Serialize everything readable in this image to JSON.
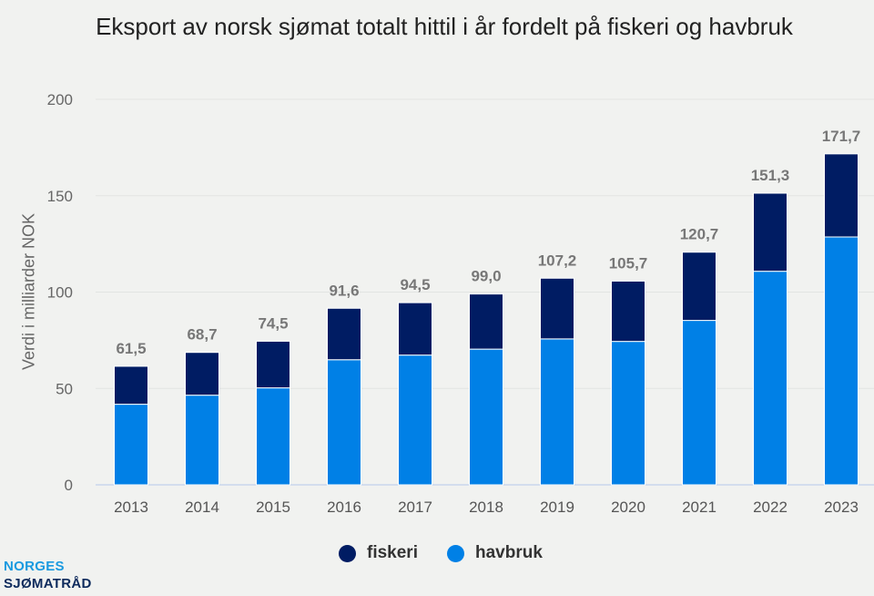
{
  "chart_data": {
    "type": "bar",
    "stacked": true,
    "title": "Eksport av norsk sjømat totalt hittil i år fordelt på fiskeri og havbruk",
    "xlabel": "",
    "ylabel": "Verdi i milliarder NOK",
    "ylim": [
      0,
      200
    ],
    "yticks": [
      0,
      50,
      100,
      150,
      200
    ],
    "grid": true,
    "legend_position": "bottom",
    "categories": [
      "2013",
      "2014",
      "2015",
      "2016",
      "2017",
      "2018",
      "2019",
      "2020",
      "2021",
      "2022",
      "2023"
    ],
    "series": [
      {
        "name": "havbruk",
        "color": "#0080e6",
        "values": [
          41.8,
          46.5,
          50.3,
          64.9,
          67.3,
          70.4,
          75.7,
          74.4,
          85.3,
          110.8,
          128.6
        ]
      },
      {
        "name": "fiskeri",
        "color": "#001c63",
        "values": [
          19.7,
          22.2,
          24.2,
          26.7,
          27.2,
          28.6,
          31.5,
          31.3,
          35.4,
          40.5,
          43.1
        ]
      }
    ],
    "totals_labels": [
      "61,5",
      "68,7",
      "74,5",
      "91,6",
      "94,5",
      "99,0",
      "107,2",
      "105,7",
      "120,7",
      "151,3",
      "171,7"
    ]
  },
  "legend": {
    "items": [
      {
        "label": "fiskeri",
        "color": "#001c63"
      },
      {
        "label": "havbruk",
        "color": "#0080e6"
      }
    ]
  },
  "logo": {
    "line1": "NORGES",
    "line2": "SJØMATRÅD"
  }
}
